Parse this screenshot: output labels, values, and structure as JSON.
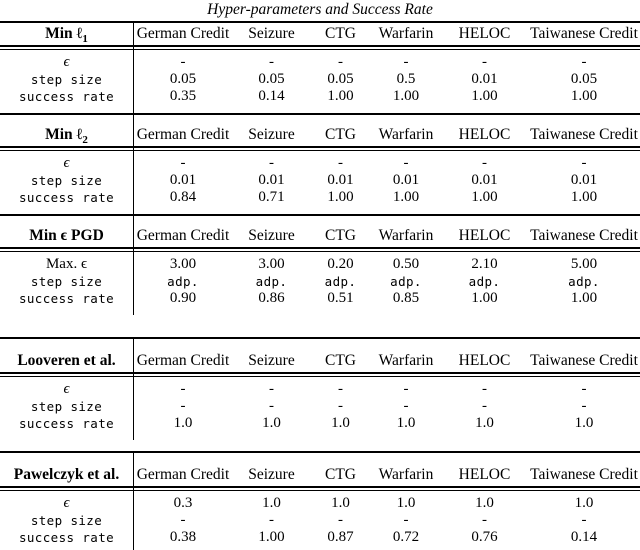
{
  "title": "Hyper-parameters and Success Rate",
  "sections": [
    {
      "title": {
        "main": "Min ℓ",
        "sub": "1"
      },
      "columns": [
        "German Credit",
        "Seizure",
        "CTG",
        "Warfarin",
        "HELOC",
        "Taiwanese Credit"
      ],
      "rows": [
        {
          "label": "ϵ",
          "values": [
            "-",
            "-",
            "-",
            "-",
            "-",
            "-"
          ]
        },
        {
          "label": "step size",
          "values": [
            "0.05",
            "0.05",
            "0.05",
            "0.5",
            "0.01",
            "0.05"
          ]
        },
        {
          "label": "success rate",
          "values": [
            "0.35",
            "0.14",
            "1.00",
            "1.00",
            "1.00",
            "1.00"
          ]
        }
      ]
    },
    {
      "title": {
        "main": "Min ℓ",
        "sub": "2"
      },
      "columns": [
        "German Credit",
        "Seizure",
        "CTG",
        "Warfarin",
        "HELOC",
        "Taiwanese Credit"
      ],
      "rows": [
        {
          "label": "ϵ",
          "values": [
            "-",
            "-",
            "-",
            "-",
            "-",
            "-"
          ]
        },
        {
          "label": "step size",
          "values": [
            "0.01",
            "0.01",
            "0.01",
            "0.01",
            "0.01",
            "0.01"
          ]
        },
        {
          "label": "success rate",
          "values": [
            "0.84",
            "0.71",
            "1.00",
            "1.00",
            "1.00",
            "1.00"
          ]
        }
      ]
    },
    {
      "title": {
        "main": "Min ϵ PGD",
        "sub": ""
      },
      "columns": [
        "German Credit",
        "Seizure",
        "CTG",
        "Warfarin",
        "HELOC",
        "Taiwanese Credit"
      ],
      "rows": [
        {
          "label": "Max. ϵ",
          "values": [
            "3.00",
            "3.00",
            "0.20",
            "0.50",
            "2.10",
            "5.00"
          ]
        },
        {
          "label": "step size",
          "values": [
            "adp.",
            "adp.",
            "adp.",
            "adp.",
            "adp.",
            "adp."
          ]
        },
        {
          "label": "success rate",
          "values": [
            "0.90",
            "0.86",
            "0.51",
            "0.85",
            "1.00",
            "1.00"
          ]
        }
      ]
    },
    {
      "title": {
        "main": "Looveren et al.",
        "sub": ""
      },
      "columns": [
        "German Credit",
        "Seizure",
        "CTG",
        "Warfarin",
        "HELOC",
        "Taiwanese Credit"
      ],
      "rows": [
        {
          "label": "ϵ",
          "values": [
            "-",
            "-",
            "-",
            "-",
            "-",
            "-"
          ]
        },
        {
          "label": "step size",
          "values": [
            "-",
            "-",
            "-",
            "-",
            "-",
            "-"
          ]
        },
        {
          "label": "success rate",
          "values": [
            "1.0",
            "1.0",
            "1.0",
            "1.0",
            "1.0",
            "1.0"
          ]
        }
      ]
    },
    {
      "title": {
        "main": "Pawelczyk et al.",
        "sub": ""
      },
      "columns": [
        "German Credit",
        "Seizure",
        "CTG",
        "Warfarin",
        "HELOC",
        "Taiwanese Credit"
      ],
      "rows": [
        {
          "label": "ϵ",
          "values": [
            "0.3",
            "1.0",
            "1.0",
            "1.0",
            "1.0",
            "1.0"
          ]
        },
        {
          "label": "step size",
          "values": [
            "-",
            "-",
            "-",
            "-",
            "-",
            "-"
          ]
        },
        {
          "label": "success rate",
          "values": [
            "0.38",
            "1.00",
            "0.87",
            "0.72",
            "0.76",
            "0.14"
          ]
        }
      ]
    }
  ]
}
